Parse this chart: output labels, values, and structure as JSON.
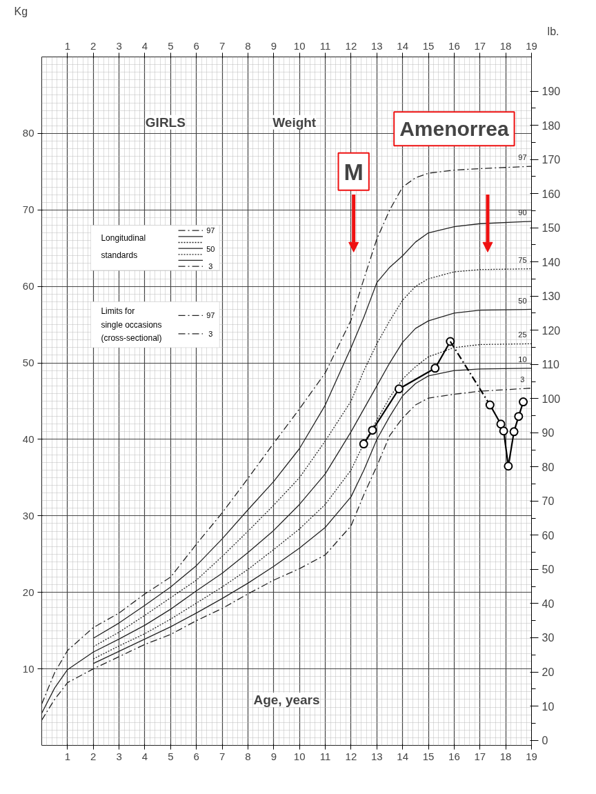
{
  "chart_data": {
    "type": "line",
    "title": "GIRLS",
    "subtitle": "Weight",
    "xlabel": "Age, years",
    "ylabel": "Kg",
    "y2label": "lb.",
    "xlim": [
      0,
      19
    ],
    "xticks": [
      1,
      2,
      3,
      4,
      5,
      6,
      7,
      8,
      9,
      10,
      11,
      12,
      13,
      14,
      15,
      16,
      17,
      18,
      19
    ],
    "x2lim": [
      0,
      19
    ],
    "x2ticks": [
      1,
      2,
      3,
      4,
      5,
      6,
      7,
      8,
      9,
      10,
      11,
      12,
      13,
      14,
      15,
      16,
      17,
      18,
      19
    ],
    "ylim": [
      0,
      90
    ],
    "yticks": [
      10,
      20,
      30,
      40,
      50,
      60,
      70,
      80
    ],
    "y2lim": [
      -1.5,
      200
    ],
    "y2ticks": [
      0,
      10,
      20,
      30,
      40,
      50,
      60,
      70,
      80,
      90,
      100,
      110,
      120,
      130,
      140,
      150,
      160,
      170,
      180,
      190
    ],
    "grid": true,
    "legend": "top left",
    "series": [
      {
        "name": "97",
        "color": "#222222",
        "line_style": "dashed",
        "x": [
          0,
          0.5,
          1,
          2,
          3,
          4,
          5,
          6,
          7,
          8,
          9,
          10,
          11,
          12,
          12.5,
          13,
          13.5,
          14,
          14.5,
          15,
          16,
          17,
          19
        ],
        "values": [
          5.4,
          9.5,
          12.4,
          15.4,
          17.3,
          19.8,
          22.0,
          26.3,
          30.4,
          34.9,
          39.5,
          44.0,
          48.7,
          55.6,
          61,
          66.2,
          70,
          73,
          74.2,
          74.8,
          75.2,
          75.4,
          75.7
        ]
      },
      {
        "name": "90",
        "color": "#222222",
        "line_style": "solid",
        "x": [
          2,
          3,
          4,
          5,
          6,
          7,
          8,
          9,
          10,
          11,
          12,
          12.5,
          13,
          13.5,
          14,
          14.5,
          15,
          16,
          17,
          19
        ],
        "values": [
          14.0,
          16.0,
          18.3,
          20.7,
          23.5,
          27.0,
          30.8,
          34.5,
          38.8,
          44.5,
          52.0,
          56,
          60.5,
          62.5,
          64,
          65.8,
          67.0,
          67.8,
          68.2,
          68.5
        ]
      },
      {
        "name": "75",
        "color": "#222222",
        "line_style": "dotted",
        "x": [
          2,
          3,
          4,
          5,
          6,
          7,
          8,
          9,
          10,
          11,
          12,
          12.5,
          13,
          13.5,
          14,
          14.5,
          15,
          16,
          17,
          19
        ],
        "values": [
          12.9,
          14.8,
          17.0,
          19.3,
          21.6,
          24.7,
          28.0,
          31.4,
          35.0,
          39.8,
          45,
          49,
          52.5,
          55.5,
          58.2,
          60,
          61,
          61.9,
          62.2,
          62.3
        ]
      },
      {
        "name": "50",
        "color": "#222222",
        "line_style": "solid",
        "x": [
          0,
          0.5,
          1,
          2,
          3,
          4,
          5,
          6,
          7,
          8,
          9,
          10,
          11,
          12,
          12.5,
          13,
          13.5,
          14,
          14.5,
          15,
          16,
          17,
          19
        ],
        "values": [
          4.2,
          7.5,
          9.9,
          12.2,
          13.9,
          15.7,
          17.8,
          20.2,
          22.5,
          25.2,
          28.1,
          31.5,
          35.5,
          41.0,
          44,
          47,
          50,
          52.7,
          54.5,
          55.5,
          56.5,
          56.9,
          57.0
        ]
      },
      {
        "name": "25",
        "color": "#222222",
        "line_style": "dotted",
        "x": [
          2,
          3,
          4,
          5,
          6,
          7,
          8,
          9,
          10,
          11,
          12,
          12.5,
          13,
          13.5,
          14,
          14.5,
          15,
          16,
          17,
          19
        ],
        "values": [
          11.3,
          13.0,
          14.6,
          16.5,
          18.6,
          20.7,
          23.0,
          25.6,
          28.3,
          31.5,
          36.0,
          39.5,
          42.5,
          45.5,
          47.9,
          49.5,
          50.8,
          52.0,
          52.4,
          52.5
        ]
      },
      {
        "name": "10",
        "color": "#222222",
        "line_style": "solid",
        "x": [
          2,
          3,
          4,
          5,
          6,
          7,
          8,
          9,
          10,
          11,
          12,
          12.5,
          13,
          13.5,
          14,
          14.5,
          15,
          16,
          17,
          19
        ],
        "values": [
          10.7,
          12.3,
          13.9,
          15.5,
          17.3,
          19.2,
          21.2,
          23.4,
          25.8,
          28.5,
          32.5,
          36.0,
          40.0,
          43.0,
          45.7,
          47.3,
          48.3,
          49.0,
          49.2,
          49.3
        ]
      },
      {
        "name": "3",
        "color": "#222222",
        "line_style": "dashed",
        "x": [
          0,
          0.5,
          1,
          2,
          3,
          4,
          5,
          6,
          7,
          8,
          9,
          10,
          11,
          12,
          12.5,
          13,
          13.5,
          14,
          14.5,
          15,
          16,
          17,
          19
        ],
        "values": [
          3.3,
          6.0,
          8.2,
          10.0,
          11.6,
          13.2,
          14.5,
          16.3,
          17.9,
          19.8,
          21.6,
          23.1,
          24.9,
          28.7,
          32.8,
          36.5,
          40.5,
          42.8,
          44.5,
          45.4,
          45.9,
          46.3,
          46.7
        ]
      },
      {
        "color": "#000000",
        "line_style": "solid",
        "marker": "circle",
        "x": [
          12.49,
          12.83,
          13.86,
          15.26,
          15.85
        ],
        "values": [
          39.4,
          41.2,
          46.6,
          49.3,
          52.8
        ]
      },
      {
        "color": "#000000",
        "line_style": "dashed",
        "x": [
          15.85,
          17.39
        ],
        "values": [
          52.8,
          44.5
        ]
      },
      {
        "color": "#000000",
        "line_style": "solid",
        "marker": "circle",
        "x": [
          17.39,
          17.81,
          17.92,
          18.1,
          18.32,
          18.5,
          18.68
        ],
        "values": [
          44.5,
          42.0,
          41.1,
          36.5,
          41.0,
          43.0,
          44.9
        ]
      }
    ],
    "annotations": [
      "M",
      "Amenorrea",
      "Longitudinal\nstandards",
      "Limits for\nsingle occasions\n(cross-sectional)",
      "97",
      "50",
      "3",
      "97",
      "3"
    ]
  }
}
